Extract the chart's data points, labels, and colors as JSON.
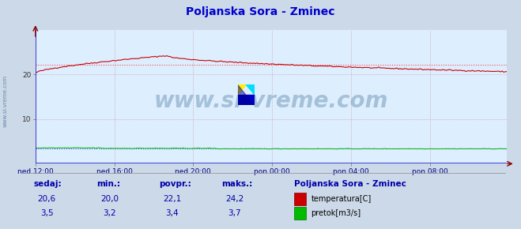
{
  "title": "Poljanska Sora - Zminec",
  "bg_color": "#ccd9e8",
  "plot_bg_color": "#ddeeff",
  "x_labels": [
    "ned 12:00",
    "ned 16:00",
    "ned 20:00",
    "pon 00:00",
    "pon 04:00",
    "pon 08:00"
  ],
  "x_ticks_pos": [
    0,
    48,
    96,
    144,
    192,
    240
  ],
  "total_points": 288,
  "ylim": [
    0,
    30
  ],
  "temp_color": "#cc0000",
  "flow_color": "#00bb00",
  "avg_temp_line_color": "#ff4444",
  "avg_flow_line_color": "#4444ff",
  "watermark_text": "www.si-vreme.com",
  "sidebar_text": "www.si-vreme.com",
  "sidebar_color": "#6688aa",
  "temp_avg": 22.1,
  "flow_avg": 3.4,
  "temp_min": 20.0,
  "temp_max": 24.2,
  "temp_sedaj": 20.6,
  "flow_min": 3.2,
  "flow_max": 3.7,
  "flow_sedaj": 3.5,
  "flow_povpr": 3.4,
  "grid_color": "#cc8888",
  "axis_color": "#2222cc",
  "label_color": "#0000aa",
  "title_color": "#0000cc"
}
